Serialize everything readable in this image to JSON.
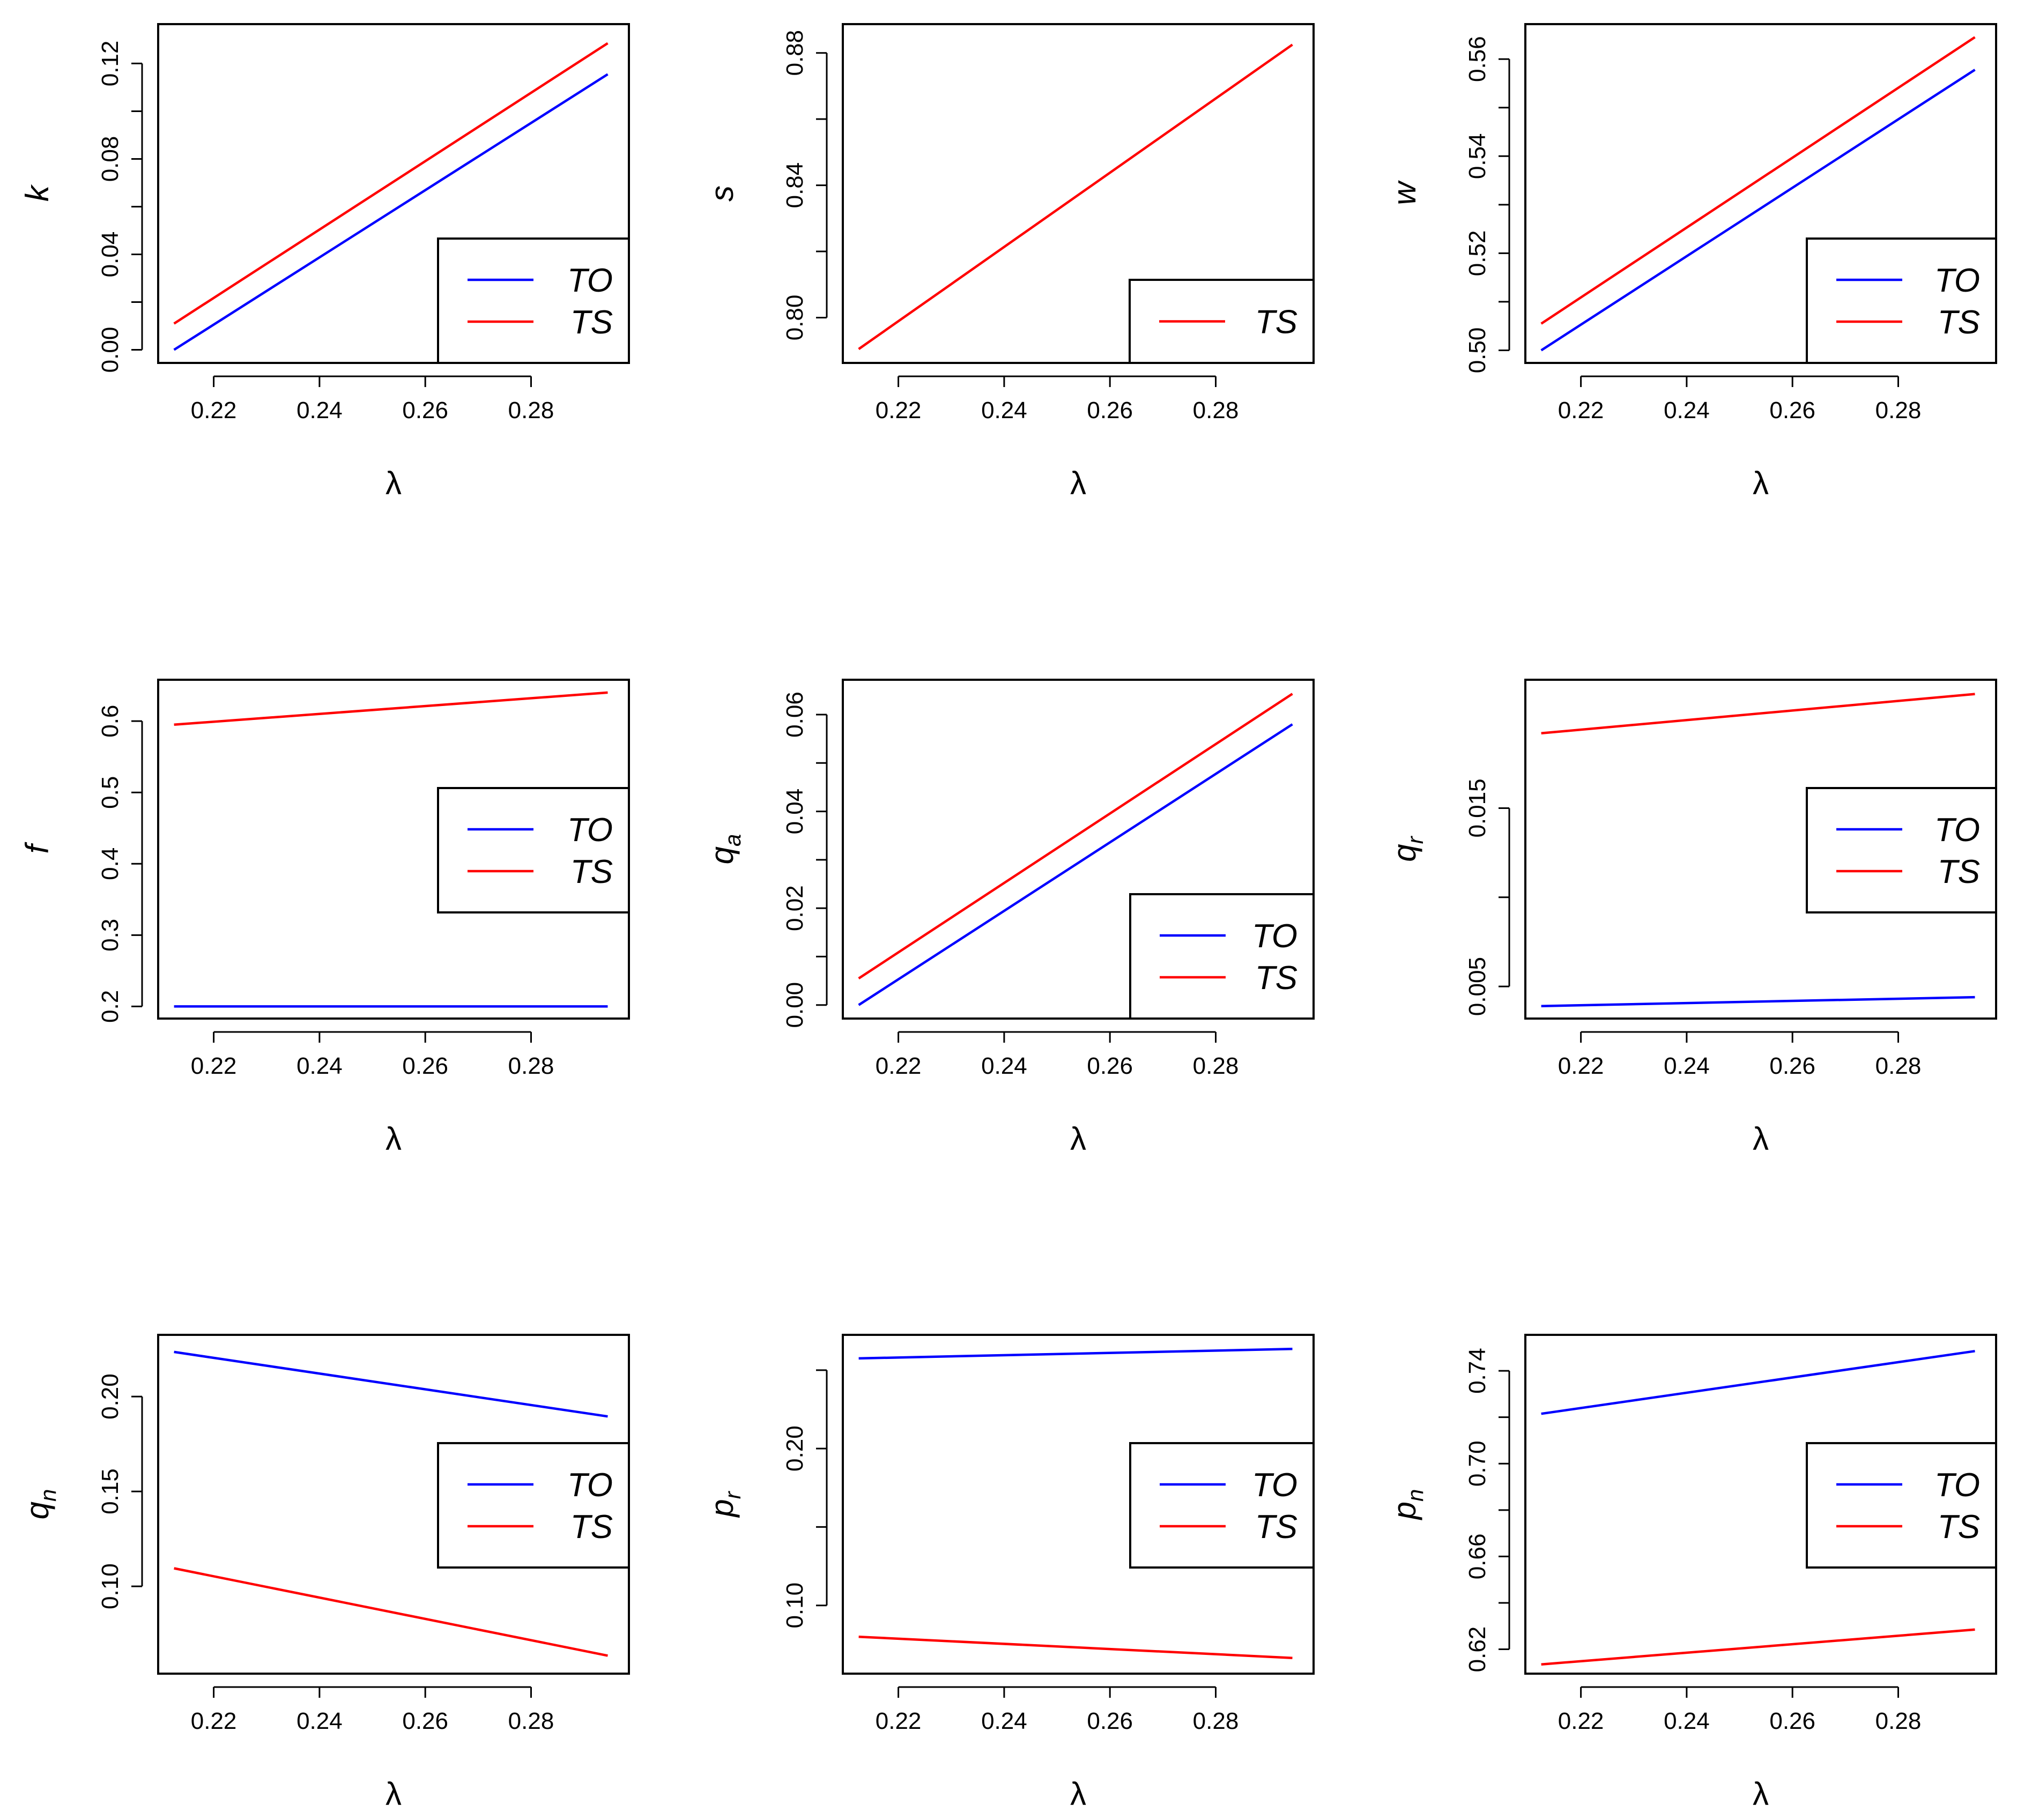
{
  "colors": {
    "TO": "#0000ff",
    "TS": "#ff0000"
  },
  "chart_data": [
    {
      "type": "line",
      "ylabel": "k",
      "ylabel_sub": "",
      "xlabel": "λ",
      "x": [
        0.2125,
        0.2945
      ],
      "xticks": [
        0.22,
        0.24,
        0.26,
        0.28
      ],
      "xtick_labels": [
        "0.22",
        "0.24",
        "0.26",
        "0.28"
      ],
      "yticks": [
        0.0,
        0.02,
        0.04,
        0.06,
        0.08,
        0.1,
        0.12
      ],
      "ytick_labels": [
        "0.00",
        "",
        "0.04",
        "",
        "0.08",
        "",
        "0.12"
      ],
      "xlim": [
        0.2095,
        0.2985
      ],
      "ylim": [
        -0.0055,
        0.1365
      ],
      "series": [
        {
          "name": "TO",
          "values": [
            0.0,
            0.1155
          ]
        },
        {
          "name": "TS",
          "values": [
            0.011,
            0.1285
          ]
        }
      ],
      "legend": {
        "position": "bottom-right",
        "entries": [
          "TO",
          "TS"
        ]
      }
    },
    {
      "type": "line",
      "ylabel": "s",
      "ylabel_sub": "",
      "xlabel": "λ",
      "x": [
        0.2125,
        0.2945
      ],
      "xticks": [
        0.22,
        0.24,
        0.26,
        0.28
      ],
      "xtick_labels": [
        "0.22",
        "0.24",
        "0.26",
        "0.28"
      ],
      "yticks": [
        0.8,
        0.82,
        0.84,
        0.86,
        0.88
      ],
      "ytick_labels": [
        "0.80",
        "",
        "0.84",
        "",
        "0.88"
      ],
      "xlim": [
        0.2095,
        0.2985
      ],
      "ylim": [
        0.7863,
        0.8887
      ],
      "series": [
        {
          "name": "TS",
          "values": [
            0.7905,
            0.8825
          ]
        }
      ],
      "legend": {
        "position": "bottom-right",
        "entries": [
          "TS"
        ]
      }
    },
    {
      "type": "line",
      "ylabel": "w",
      "ylabel_sub": "",
      "xlabel": "λ",
      "x": [
        0.2125,
        0.2945
      ],
      "xticks": [
        0.22,
        0.24,
        0.26,
        0.28
      ],
      "xtick_labels": [
        "0.22",
        "0.24",
        "0.26",
        "0.28"
      ],
      "yticks": [
        0.5,
        0.51,
        0.52,
        0.53,
        0.54,
        0.55,
        0.56
      ],
      "ytick_labels": [
        "0.50",
        "",
        "0.52",
        "",
        "0.54",
        "",
        "0.56"
      ],
      "xlim": [
        0.2095,
        0.2985
      ],
      "ylim": [
        0.4974,
        0.5672
      ],
      "series": [
        {
          "name": "TO",
          "values": [
            0.5,
            0.5578
          ]
        },
        {
          "name": "TS",
          "values": [
            0.5055,
            0.5645
          ]
        }
      ],
      "legend": {
        "position": "bottom-right",
        "entries": [
          "TO",
          "TS"
        ]
      }
    },
    {
      "type": "line",
      "ylabel": "f",
      "ylabel_sub": "",
      "xlabel": "λ",
      "x": [
        0.2125,
        0.2945
      ],
      "xticks": [
        0.22,
        0.24,
        0.26,
        0.28
      ],
      "xtick_labels": [
        "0.22",
        "0.24",
        "0.26",
        "0.28"
      ],
      "yticks": [
        0.2,
        0.3,
        0.4,
        0.5,
        0.6
      ],
      "ytick_labels": [
        "0.2",
        "0.3",
        "0.4",
        "0.5",
        "0.6"
      ],
      "xlim": [
        0.2095,
        0.2985
      ],
      "ylim": [
        0.183,
        0.658
      ],
      "series": [
        {
          "name": "TO",
          "values": [
            0.2,
            0.2
          ]
        },
        {
          "name": "TS",
          "values": [
            0.595,
            0.64
          ]
        }
      ],
      "legend": {
        "position": "right",
        "entries": [
          "TO",
          "TS"
        ]
      }
    },
    {
      "type": "line",
      "ylabel": "q",
      "ylabel_sub": "a",
      "xlabel": "λ",
      "x": [
        0.2125,
        0.2945
      ],
      "xticks": [
        0.22,
        0.24,
        0.26,
        0.28
      ],
      "xtick_labels": [
        "0.22",
        "0.24",
        "0.26",
        "0.28"
      ],
      "yticks": [
        0.0,
        0.01,
        0.02,
        0.03,
        0.04,
        0.05,
        0.06
      ],
      "ytick_labels": [
        "0.00",
        "",
        "0.02",
        "",
        "0.04",
        "",
        "0.06"
      ],
      "xlim": [
        0.2095,
        0.2985
      ],
      "ylim": [
        -0.0028,
        0.0672
      ],
      "series": [
        {
          "name": "TO",
          "values": [
            0.0,
            0.058
          ]
        },
        {
          "name": "TS",
          "values": [
            0.0055,
            0.0643
          ]
        }
      ],
      "legend": {
        "position": "bottom-right",
        "entries": [
          "TO",
          "TS"
        ]
      }
    },
    {
      "type": "line",
      "ylabel": "q",
      "ylabel_sub": "r",
      "xlabel": "λ",
      "x": [
        0.2125,
        0.2945
      ],
      "xticks": [
        0.22,
        0.24,
        0.26,
        0.28
      ],
      "xtick_labels": [
        "0.22",
        "0.24",
        "0.26",
        "0.28"
      ],
      "yticks": [
        0.005,
        0.01,
        0.015
      ],
      "ytick_labels": [
        "0.005",
        "",
        "0.015"
      ],
      "xlim": [
        0.2095,
        0.2985
      ],
      "ylim": [
        0.0032,
        0.0222
      ],
      "series": [
        {
          "name": "TO",
          "values": [
            0.0039,
            0.0044
          ]
        },
        {
          "name": "TS",
          "values": [
            0.0192,
            0.0214
          ]
        }
      ],
      "legend": {
        "position": "right",
        "entries": [
          "TO",
          "TS"
        ]
      }
    },
    {
      "type": "line",
      "ylabel": "q",
      "ylabel_sub": "n",
      "xlabel": "λ",
      "x": [
        0.2125,
        0.2945
      ],
      "xticks": [
        0.22,
        0.24,
        0.26,
        0.28
      ],
      "xtick_labels": [
        "0.22",
        "0.24",
        "0.26",
        "0.28"
      ],
      "yticks": [
        0.1,
        0.15,
        0.2
      ],
      "ytick_labels": [
        "0.10",
        "0.15",
        "0.20"
      ],
      "xlim": [
        0.2095,
        0.2985
      ],
      "ylim": [
        0.054,
        0.2325
      ],
      "series": [
        {
          "name": "TO",
          "values": [
            0.2235,
            0.1895
          ]
        },
        {
          "name": "TS",
          "values": [
            0.1095,
            0.0635
          ]
        }
      ],
      "legend": {
        "position": "right",
        "entries": [
          "TO",
          "TS"
        ]
      }
    },
    {
      "type": "line",
      "ylabel": "p",
      "ylabel_sub": "r",
      "xlabel": "λ",
      "x": [
        0.2125,
        0.2945
      ],
      "xticks": [
        0.22,
        0.24,
        0.26,
        0.28
      ],
      "xtick_labels": [
        "0.22",
        "0.24",
        "0.26",
        "0.28"
      ],
      "yticks": [
        0.1,
        0.15,
        0.2,
        0.25
      ],
      "ytick_labels": [
        "0.10",
        "",
        "0.20",
        ""
      ],
      "xlim": [
        0.2095,
        0.2985
      ],
      "ylim": [
        0.0565,
        0.2725
      ],
      "series": [
        {
          "name": "TO",
          "values": [
            0.2575,
            0.2635
          ]
        },
        {
          "name": "TS",
          "values": [
            0.08,
            0.0665
          ]
        }
      ],
      "legend": {
        "position": "right",
        "entries": [
          "TO",
          "TS"
        ]
      }
    },
    {
      "type": "line",
      "ylabel": "p",
      "ylabel_sub": "n",
      "xlabel": "λ",
      "x": [
        0.2125,
        0.2945
      ],
      "xticks": [
        0.22,
        0.24,
        0.26,
        0.28
      ],
      "xtick_labels": [
        "0.22",
        "0.24",
        "0.26",
        "0.28"
      ],
      "yticks": [
        0.62,
        0.64,
        0.66,
        0.68,
        0.7,
        0.72,
        0.74
      ],
      "ytick_labels": [
        "0.62",
        "",
        "0.66",
        "",
        "0.70",
        "",
        "0.74"
      ],
      "xlim": [
        0.2095,
        0.2985
      ],
      "ylim": [
        0.6095,
        0.7555
      ],
      "series": [
        {
          "name": "TO",
          "values": [
            0.7215,
            0.7485
          ]
        },
        {
          "name": "TS",
          "values": [
            0.6135,
            0.6285
          ]
        }
      ],
      "legend": {
        "position": "right",
        "entries": [
          "TO",
          "TS"
        ]
      }
    }
  ]
}
